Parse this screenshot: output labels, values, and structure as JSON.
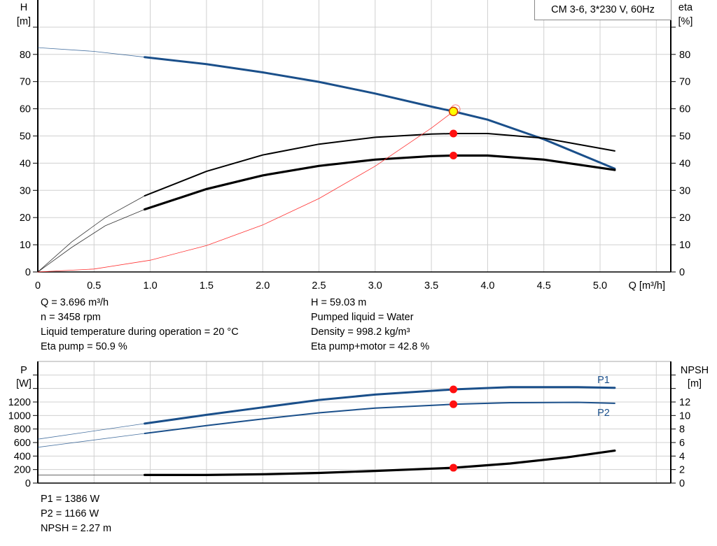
{
  "chart_data": [
    {
      "type": "line",
      "title": "CM 3-6, 3*230 V, 60Hz",
      "xlabel": "Q [m³/h]",
      "ylabel_left": {
        "name": "H",
        "unit": "[m]"
      },
      "ylabel_right": {
        "name": "eta",
        "unit": "[%]"
      },
      "xlim": [
        0,
        5.63
      ],
      "ylim": [
        0,
        100
      ],
      "x_ticks": [
        "0",
        "0.5",
        "1.0",
        "1.5",
        "2.0",
        "2.5",
        "3.0",
        "3.5",
        "4.0",
        "4.5",
        "5.0"
      ],
      "y_ticks": [
        "0",
        "10",
        "20",
        "30",
        "40",
        "50",
        "60",
        "70",
        "80"
      ],
      "grid": true,
      "colors": {
        "head": "#1a4f8a",
        "eta": "#000000",
        "system": "#ff3030",
        "point": "#ff1010",
        "duty_point": "#ffff00"
      },
      "series": [
        {
          "id": "head",
          "axis": "left",
          "color": "#1a4f8a",
          "extrapolated": [
            [
              0,
              82.5
            ],
            [
              0.5,
              81.1
            ],
            [
              0.95,
              79
            ]
          ],
          "values": [
            [
              0.95,
              79
            ],
            [
              1.5,
              76.4
            ],
            [
              2,
              73.4
            ],
            [
              2.5,
              69.9
            ],
            [
              3,
              65.6
            ],
            [
              3.5,
              60.8
            ],
            [
              3.696,
              59.03
            ],
            [
              4,
              56
            ],
            [
              4.5,
              48.8
            ],
            [
              5.13,
              38
            ]
          ]
        },
        {
          "id": "eta-pump",
          "axis": "right",
          "color": "#000000",
          "extrapolated": [
            [
              0,
              0
            ],
            [
              0.3,
              11
            ],
            [
              0.6,
              20
            ],
            [
              0.95,
              28
            ]
          ],
          "values": [
            [
              0.95,
              28
            ],
            [
              1.5,
              37
            ],
            [
              2,
              43
            ],
            [
              2.5,
              47
            ],
            [
              3,
              49.5
            ],
            [
              3.5,
              50.7
            ],
            [
              3.696,
              50.9
            ],
            [
              4,
              50.9
            ],
            [
              4.5,
              49.2
            ],
            [
              5.13,
              44.5
            ]
          ]
        },
        {
          "id": "eta-pump-motor",
          "axis": "right",
          "color": "#000000",
          "extrapolated": [
            [
              0,
              0
            ],
            [
              0.3,
              9
            ],
            [
              0.6,
              17
            ],
            [
              0.95,
              23
            ]
          ],
          "values": [
            [
              0.95,
              23
            ],
            [
              1.5,
              30.5
            ],
            [
              2,
              35.5
            ],
            [
              2.5,
              39
            ],
            [
              3,
              41.3
            ],
            [
              3.5,
              42.6
            ],
            [
              3.696,
              42.8
            ],
            [
              4,
              42.8
            ],
            [
              4.5,
              41.3
            ],
            [
              5.13,
              37.5
            ]
          ]
        },
        {
          "id": "system-curve",
          "axis": "left",
          "color": "#ff3030",
          "values": [
            [
              0,
              0
            ],
            [
              0.5,
              1.08
            ],
            [
              1,
              4.32
            ],
            [
              1.5,
              9.72
            ],
            [
              2,
              17.28
            ],
            [
              2.5,
              27
            ],
            [
              3,
              38.9
            ],
            [
              3.5,
              52.9
            ],
            [
              3.696,
              59.03
            ]
          ]
        }
      ],
      "points": [
        {
          "id": "duty-point-head",
          "x": 3.696,
          "y": 59.03,
          "color": "#ffff00"
        },
        {
          "id": "duty-point-eta-pump",
          "x": 3.696,
          "y": 50.9,
          "color": "#ff1010"
        },
        {
          "id": "duty-point-eta-total",
          "x": 3.696,
          "y": 42.8,
          "color": "#ff1010"
        }
      ]
    },
    {
      "type": "line",
      "ylabel_left": {
        "name": "P",
        "unit": "[W]"
      },
      "ylabel_right": {
        "name": "NPSH",
        "unit": "[m]"
      },
      "xlim": [
        0,
        5.63
      ],
      "ylim": [
        0,
        1800
      ],
      "ylim_right": [
        0,
        18
      ],
      "y_ticks": [
        "0",
        "200",
        "400",
        "600",
        "800",
        "1000",
        "1200"
      ],
      "y_ticks_right": [
        "0",
        "2",
        "4",
        "6",
        "8",
        "10",
        "12"
      ],
      "grid": true,
      "series": [
        {
          "id": "P1",
          "name": "P1",
          "axis": "left",
          "color": "#1a4f8a",
          "extrapolated": [
            [
              0,
              650
            ],
            [
              0.95,
              880
            ]
          ],
          "values": [
            [
              0.95,
              880
            ],
            [
              1.5,
              1010
            ],
            [
              2,
              1120
            ],
            [
              2.5,
              1230
            ],
            [
              3,
              1310
            ],
            [
              3.696,
              1386
            ],
            [
              4.2,
              1420
            ],
            [
              4.8,
              1420
            ],
            [
              5.13,
              1410
            ]
          ]
        },
        {
          "id": "P2",
          "name": "P2",
          "axis": "left",
          "color": "#1a4f8a",
          "extrapolated": [
            [
              0,
              530
            ],
            [
              0.95,
              735
            ]
          ],
          "values": [
            [
              0.95,
              735
            ],
            [
              1.5,
              850
            ],
            [
              2,
              950
            ],
            [
              2.5,
              1040
            ],
            [
              3,
              1110
            ],
            [
              3.696,
              1166
            ],
            [
              4.2,
              1190
            ],
            [
              4.8,
              1195
            ],
            [
              5.13,
              1180
            ]
          ]
        },
        {
          "id": "NPSH",
          "axis": "right",
          "color": "#000000",
          "extrapolated": [
            [
              0,
              1.2
            ],
            [
              0.95,
              1.2
            ]
          ],
          "values": [
            [
              0.95,
              1.2
            ],
            [
              1.5,
              1.2
            ],
            [
              2,
              1.3
            ],
            [
              2.5,
              1.5
            ],
            [
              3,
              1.8
            ],
            [
              3.696,
              2.27
            ],
            [
              4.2,
              2.9
            ],
            [
              4.7,
              3.8
            ],
            [
              5.13,
              4.8
            ]
          ]
        }
      ],
      "points": [
        {
          "id": "duty-point-p1",
          "x": 3.696,
          "y": 1386,
          "axis": "left"
        },
        {
          "id": "duty-point-p2",
          "x": 3.696,
          "y": 1166,
          "axis": "left"
        },
        {
          "id": "duty-point-npsh",
          "x": 3.696,
          "y": 2.27,
          "axis": "right"
        }
      ]
    }
  ],
  "info_top_left": [
    "Q = 3.696 m³/h",
    "n = 3458 rpm",
    "Liquid temperature during operation = 20 °C",
    "Eta pump = 50.9 %"
  ],
  "info_top_right": [
    "H = 59.03 m",
    "Pumped liquid = Water",
    "Density = 998.2 kg/m³",
    "Eta pump+motor = 42.8 %"
  ],
  "info_bottom": [
    "P1 = 1386 W",
    "P2 = 1166 W",
    "NPSH = 2.27 m"
  ]
}
